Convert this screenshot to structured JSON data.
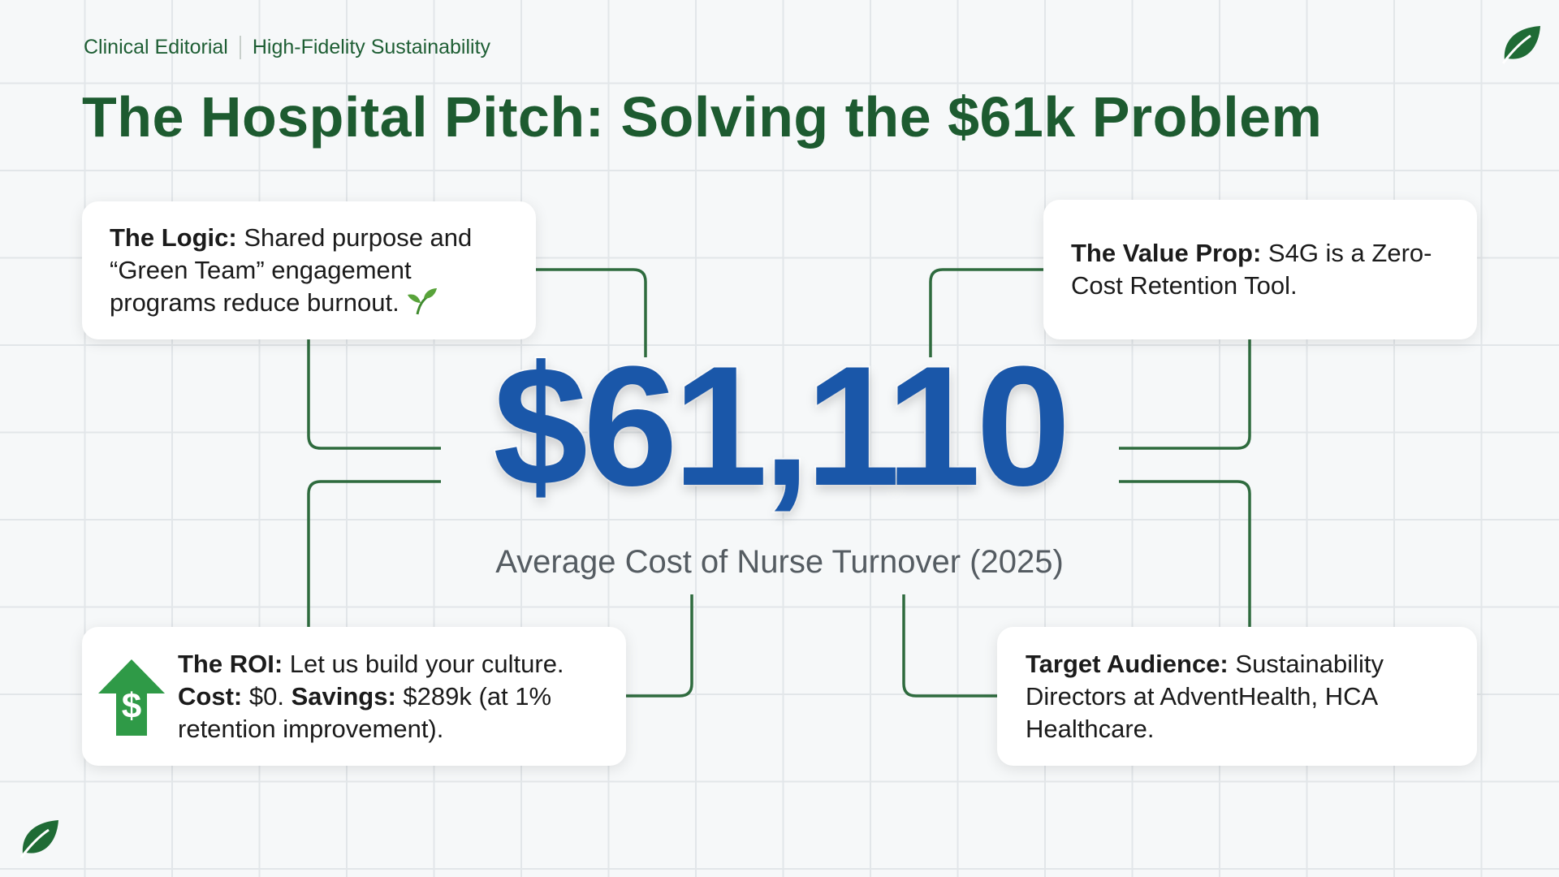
{
  "header": {
    "eyebrow": [
      "Clinical Editorial",
      "High-Fidelity Sustainability"
    ],
    "title": "The Hospital Pitch: Solving the $61k Problem"
  },
  "hero": {
    "value": "$61,110",
    "caption": "Average Cost of Nurse Turnover (2025)"
  },
  "cards": [
    {
      "segments": [
        {
          "strong": "The Logic:"
        },
        {
          "text": "Shared purpose and “Green Team” engagement programs reduce burnout."
        }
      ]
    },
    {
      "segments": [
        {
          "strong": "The Value Prop:"
        },
        {
          "text": "S4G is a Zero-Cost Retention Tool."
        }
      ]
    },
    {
      "icon": "$",
      "segments": [
        {
          "strong": "The ROI:"
        },
        {
          "text": "Let us build your culture."
        },
        {
          "strong": "Cost:"
        },
        {
          "text": "$0."
        },
        {
          "strong": "Savings:"
        },
        {
          "text": "$289k (at 1% retention improvement)."
        }
      ]
    },
    {
      "segments": [
        {
          "strong": "Target Audience:"
        },
        {
          "text": "Sustainability Directors at AdventHealth, HCA Healthcare."
        }
      ]
    }
  ]
}
